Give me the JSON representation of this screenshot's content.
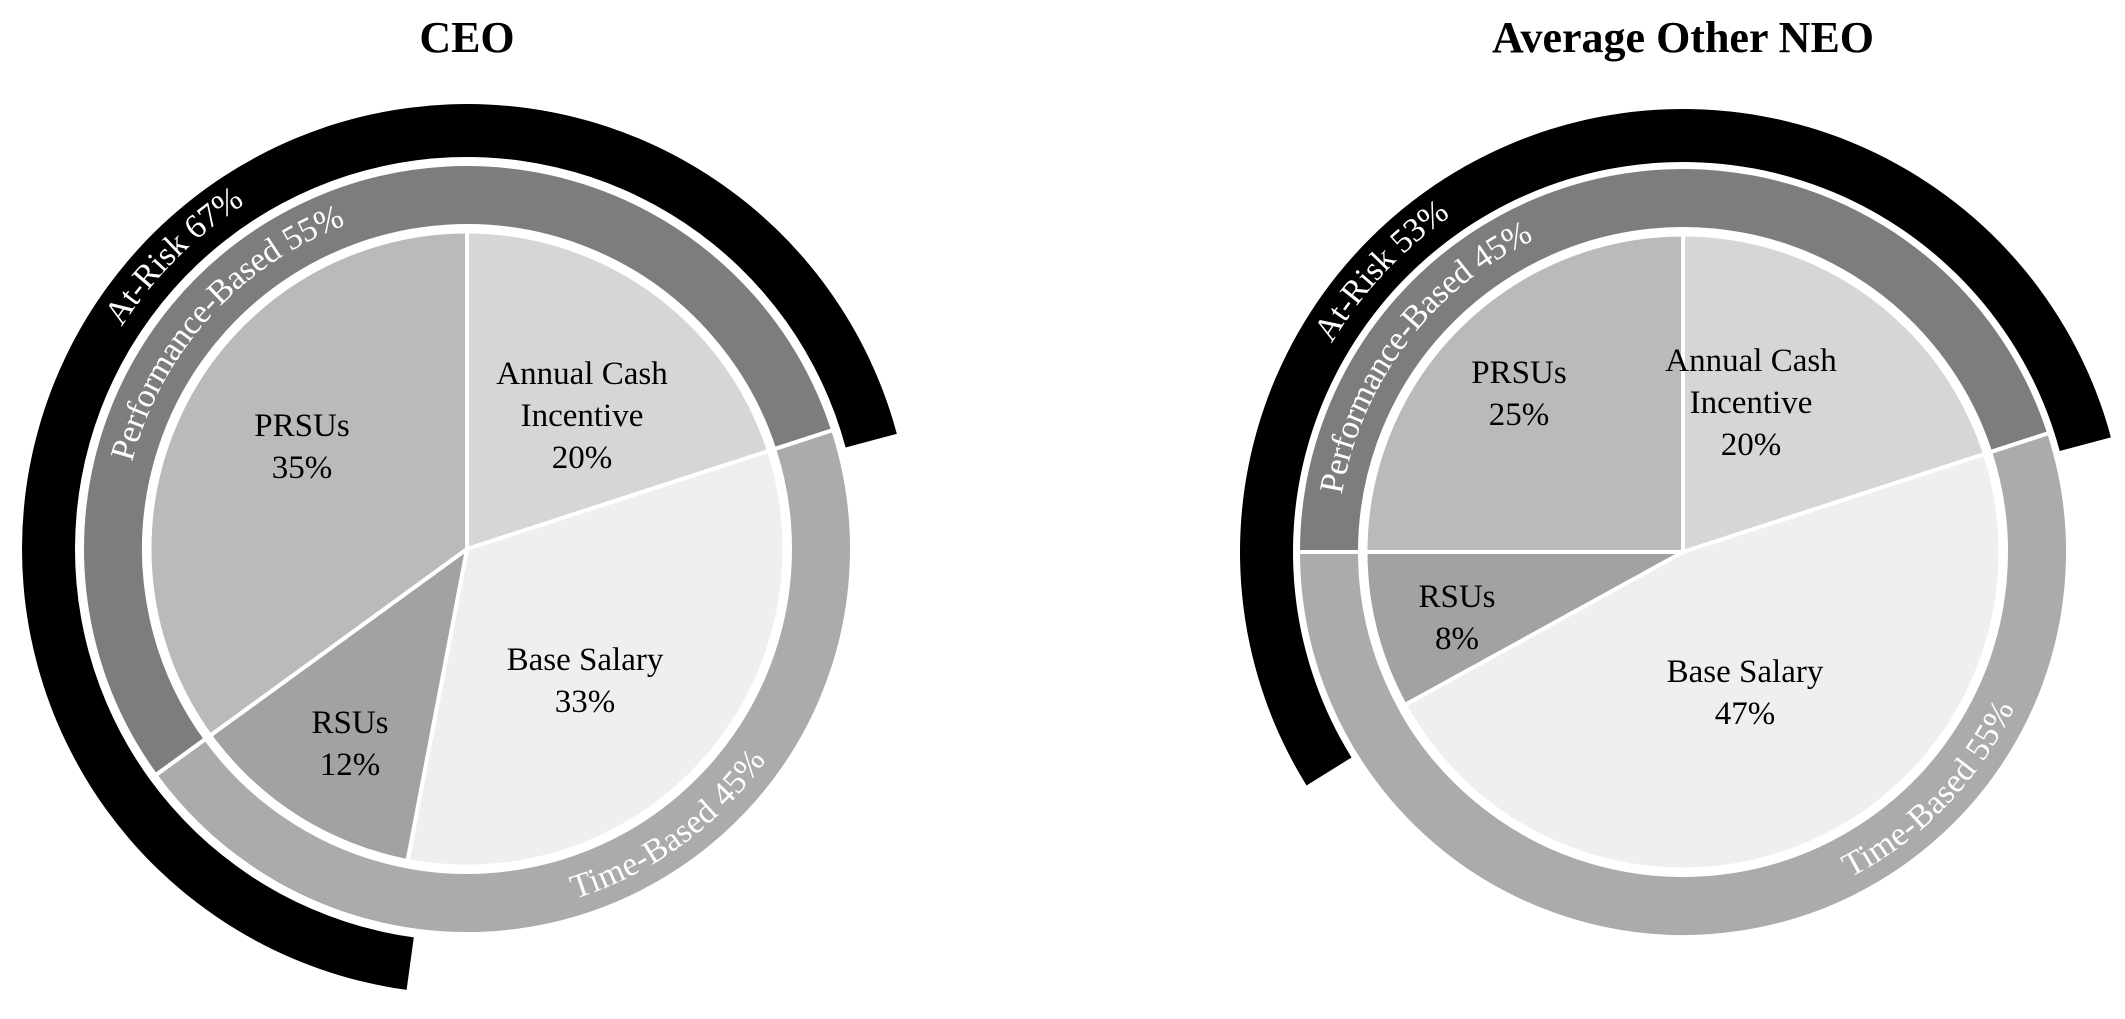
{
  "chart_data": [
    {
      "type": "pie",
      "title": "CEO",
      "slices": [
        {
          "label": "Annual Cash Incentive",
          "lines": [
            "Annual Cash",
            "Incentive",
            "20%"
          ],
          "value": 20,
          "color": "#d6d6d6"
        },
        {
          "label": "Base Salary",
          "lines": [
            "Base Salary",
            "33%"
          ],
          "value": 33,
          "color": "#efefef"
        },
        {
          "label": "RSUs",
          "lines": [
            "RSUs",
            "12%"
          ],
          "value": 12,
          "color": "#a2a2a2"
        },
        {
          "label": "PRSUs",
          "lines": [
            "PRSUs",
            "35%"
          ],
          "value": 35,
          "color": "#bababa"
        }
      ],
      "middle_ring": [
        {
          "label": "Performance-Based 55%",
          "value": 55,
          "color": "#7d7d7d",
          "start_after": "Base Salary",
          "direction": "ccw"
        },
        {
          "label": "Time-Based 45%",
          "value": 45,
          "color": "#acaaaa",
          "direction": "cw"
        }
      ],
      "outer_ring": [
        {
          "label": "At-Risk 67%",
          "value": 67,
          "color": "#000000"
        }
      ]
    },
    {
      "type": "pie",
      "title": "Average Other NEO",
      "slices": [
        {
          "label": "Annual Cash Incentive",
          "lines": [
            "Annual Cash",
            "Incentive",
            "20%"
          ],
          "value": 20,
          "color": "#d6d6d6"
        },
        {
          "label": "Base Salary",
          "lines": [
            "Base Salary",
            "47%"
          ],
          "value": 47,
          "color": "#efefef"
        },
        {
          "label": "RSUs",
          "lines": [
            "RSUs",
            "8%"
          ],
          "value": 8,
          "color": "#a2a2a2"
        },
        {
          "label": "PRSUs",
          "lines": [
            "PRSUs",
            "25%"
          ],
          "value": 25,
          "color": "#bababa"
        }
      ],
      "middle_ring": [
        {
          "label": "Performance-Based 45%",
          "value": 45,
          "color": "#7d7d7d"
        },
        {
          "label": "Time-Based 55%",
          "value": 55,
          "color": "#acaaaa"
        }
      ],
      "outer_ring": [
        {
          "label": "At-Risk 53%",
          "value": 53,
          "color": "#000000"
        }
      ]
    }
  ]
}
